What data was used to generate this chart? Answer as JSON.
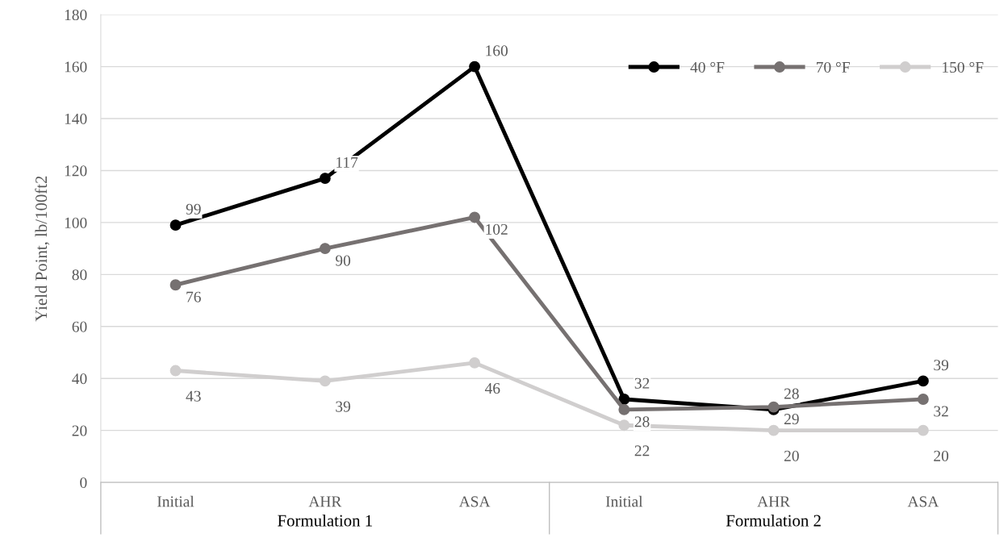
{
  "chart_data": {
    "type": "line",
    "ylabel": "Yield Point, lb/100ft2",
    "categories": [
      "Initial",
      "AHR",
      "ASA",
      "Initial",
      "AHR",
      "ASA"
    ],
    "series": [
      {
        "name": "40 °F",
        "color": "#000000",
        "values": [
          99,
          117,
          160,
          32,
          28,
          39
        ]
      },
      {
        "name": "70 °F",
        "color": "#767171",
        "values": [
          76,
          90,
          102,
          28,
          29,
          32
        ]
      },
      {
        "name": "150 °F",
        "color": "#d0cece",
        "values": [
          43,
          39,
          46,
          22,
          20,
          20
        ]
      }
    ],
    "annotations": [
      "Formulation 1",
      "Formulation 2"
    ],
    "ylim": [
      0,
      180
    ],
    "yticks": [
      0,
      20,
      40,
      60,
      80,
      100,
      120,
      140,
      160,
      180
    ],
    "grid": "y",
    "legend": "top right",
    "marker": "circle",
    "line_style": "solid",
    "data_labels": true
  }
}
